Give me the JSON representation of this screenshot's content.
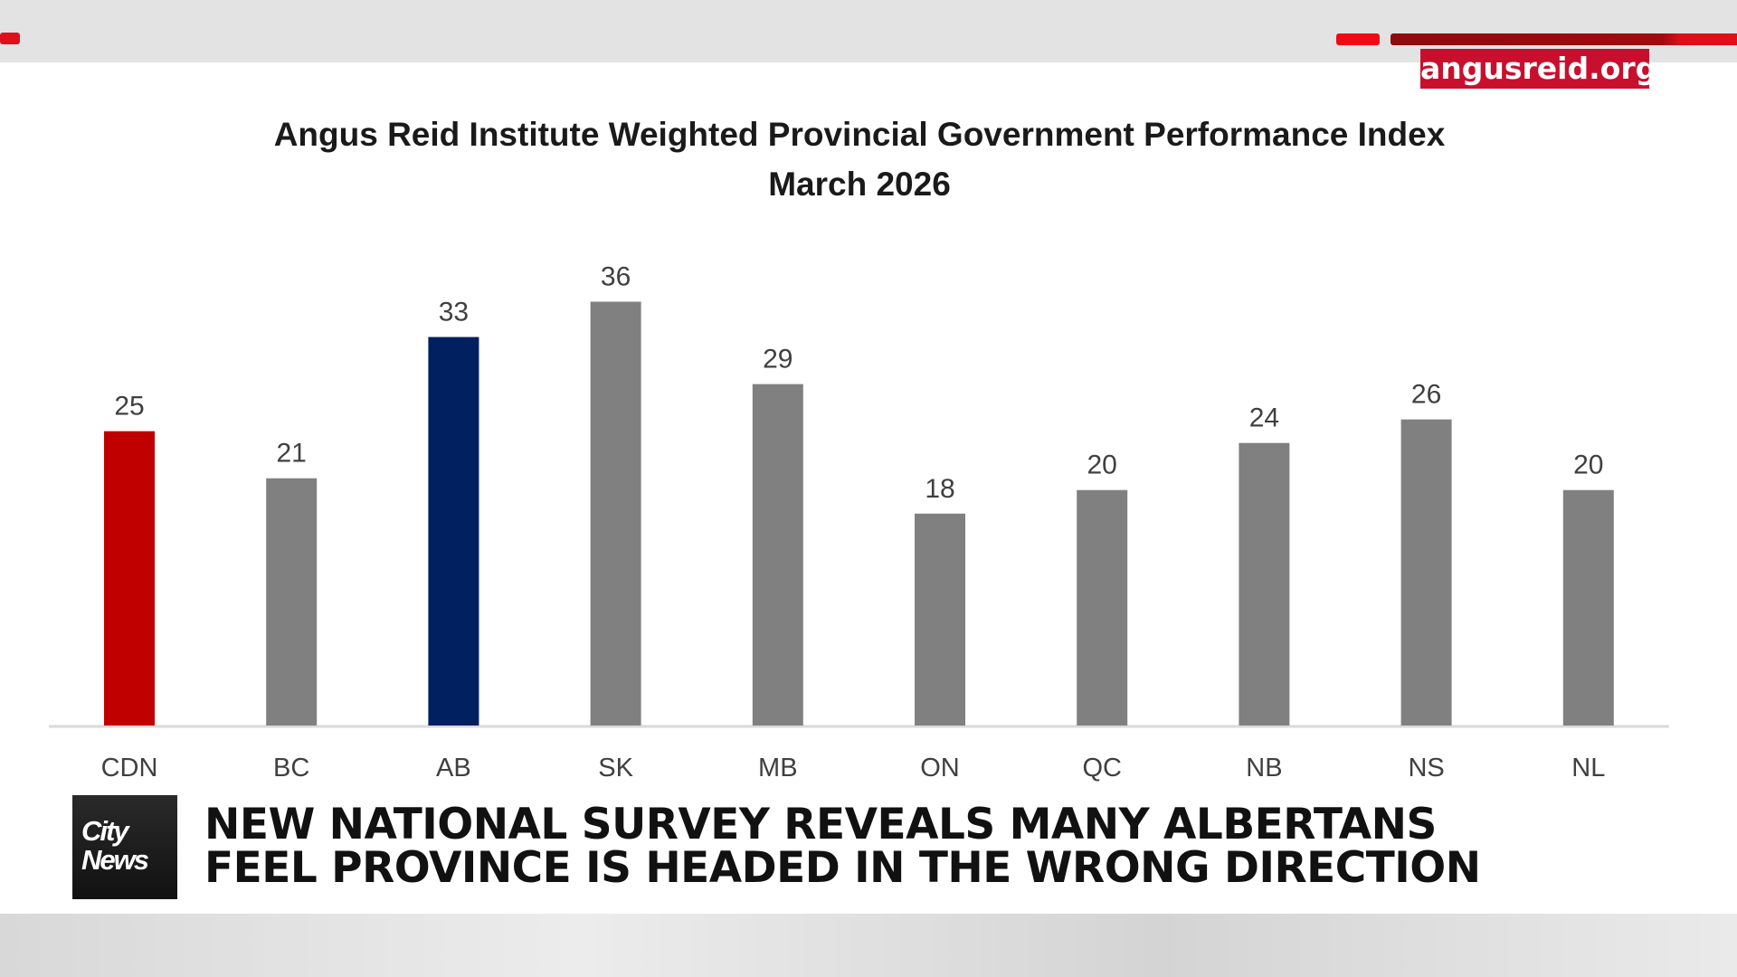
{
  "source_label": "angusreid.org",
  "chart_data": {
    "type": "bar",
    "title": "Angus Reid Institute Weighted Provincial Government Performance Index",
    "subtitle": "March 2026",
    "categories": [
      "CDN",
      "BC",
      "AB",
      "SK",
      "MB",
      "ON",
      "QC",
      "NB",
      "NS",
      "NL"
    ],
    "values": [
      25,
      21,
      33,
      36,
      29,
      18,
      20,
      24,
      26,
      20
    ],
    "colors": [
      "#c00000",
      "#808080",
      "#002060",
      "#808080",
      "#808080",
      "#808080",
      "#808080",
      "#808080",
      "#808080",
      "#808080"
    ],
    "xlabel": "",
    "ylabel": "",
    "ylim": [
      0,
      36.5
    ],
    "grid": false,
    "data_labels": true
  },
  "lower_third": {
    "logo": "City News",
    "headline_line1": "NEW NATIONAL SURVEY REVEALS MANY ALBERTANS",
    "headline_line2": "FEEL PROVINCE IS HEADED IN THE WRONG DIRECTION"
  },
  "colors": {
    "accent_red": "#c8102e",
    "dark_red": "#9b0a0f"
  }
}
